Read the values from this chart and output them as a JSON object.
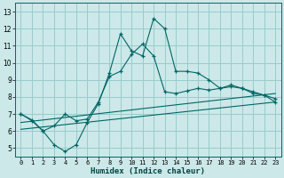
{
  "xlabel": "Humidex (Indice chaleur)",
  "bg_color": "#cce8e8",
  "grid_color": "#99cccc",
  "line_color": "#006666",
  "xlim": [
    -0.5,
    23.5
  ],
  "ylim": [
    4.5,
    13.5
  ],
  "xticks": [
    0,
    1,
    2,
    3,
    4,
    5,
    6,
    7,
    8,
    9,
    10,
    11,
    12,
    13,
    14,
    15,
    16,
    17,
    18,
    19,
    20,
    21,
    22,
    23
  ],
  "yticks": [
    5,
    6,
    7,
    8,
    9,
    10,
    11,
    12,
    13
  ],
  "lines": [
    {
      "x": [
        0,
        1,
        2,
        3,
        4,
        5,
        6,
        7,
        8,
        9,
        10,
        11,
        12,
        13,
        14,
        15,
        16,
        17,
        18,
        19,
        20,
        21,
        22,
        23
      ],
      "y": [
        7.0,
        6.6,
        6.0,
        5.2,
        4.8,
        5.2,
        6.5,
        7.6,
        9.4,
        11.7,
        10.7,
        10.4,
        12.6,
        12.0,
        9.5,
        9.5,
        9.4,
        9.0,
        8.5,
        8.7,
        8.5,
        8.3,
        8.1,
        7.7
      ],
      "marker": true
    },
    {
      "x": [
        0,
        1,
        2,
        3,
        4,
        5,
        6,
        7,
        8,
        9,
        10,
        11,
        12,
        13,
        14,
        15,
        16,
        17,
        18,
        19,
        20,
        21,
        22,
        23
      ],
      "y": [
        7.0,
        6.65,
        6.0,
        6.3,
        7.0,
        6.6,
        6.7,
        7.7,
        9.2,
        9.5,
        10.5,
        11.1,
        10.4,
        8.3,
        8.2,
        8.35,
        8.5,
        8.4,
        8.5,
        8.6,
        8.5,
        8.2,
        8.1,
        7.9
      ],
      "marker": true
    },
    {
      "x": [
        0,
        23
      ],
      "y": [
        6.5,
        8.2
      ],
      "marker": false
    },
    {
      "x": [
        0,
        23
      ],
      "y": [
        6.1,
        7.7
      ],
      "marker": false
    }
  ]
}
